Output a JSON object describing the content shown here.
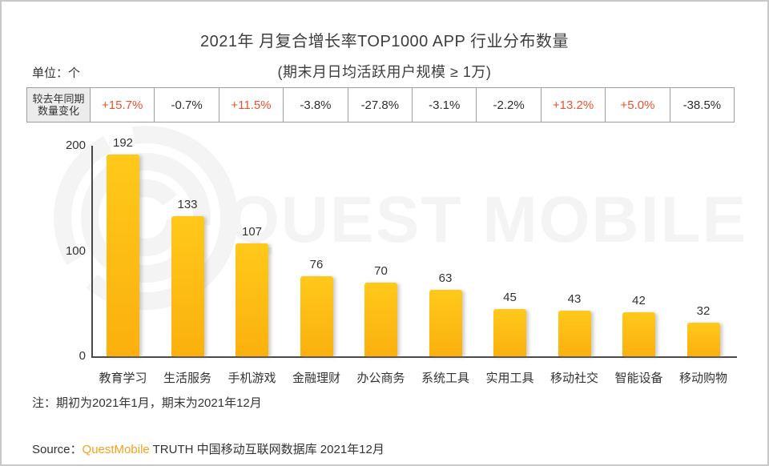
{
  "page": {
    "title": "2021年 月复合增长率TOP1000 APP 行业分布数量",
    "subtitle": "(期末月日均活跃用户规模 ≥ 1万)",
    "unit_label": "单位：个",
    "note": "注：期初为2021年1月，期末为2021年12月",
    "source_prefix": "Source：",
    "source_brand": "QuestMobile",
    "source_suffix": " TRUTH 中国移动互联网数据库 2021年12月",
    "watermark_text": "QUEST MOBILE"
  },
  "comparison_table": {
    "row_header_line1": "较去年同期",
    "row_header_line2": "数量变化",
    "values": [
      "+15.7%",
      "-0.7%",
      "+11.5%",
      "-3.8%",
      "-27.8%",
      "-3.1%",
      "-2.2%",
      "+13.2%",
      "+5.0%",
      "-38.5%"
    ]
  },
  "chart_data": {
    "type": "bar",
    "title": "2021年 月复合增长率TOP1000 APP 行业分布数量",
    "subtitle": "(期末月日均活跃用户规模 ≥ 1万)",
    "unit": "个",
    "categories": [
      "教育学习",
      "生活服务",
      "手机游戏",
      "金融理财",
      "办公商务",
      "系统工具",
      "实用工具",
      "移动社交",
      "智能设备",
      "移动购物"
    ],
    "values": [
      192,
      133,
      107,
      76,
      70,
      63,
      45,
      43,
      42,
      32
    ],
    "yoy_change": [
      "+15.7%",
      "-0.7%",
      "+11.5%",
      "-3.8%",
      "-27.8%",
      "-3.1%",
      "-2.2%",
      "+13.2%",
      "+5.0%",
      "-38.5%"
    ],
    "xlabel": "",
    "ylabel": "单位：个",
    "ylim": [
      0,
      200
    ],
    "yticks": [
      0,
      100,
      200
    ],
    "grid": false,
    "legend": false
  },
  "colors": {
    "bar_top": "#ffc91a",
    "bar_bottom": "#fbb00e",
    "positive_change": "#e8532f",
    "text_dark": "#333333",
    "brand_orange": "#f5a11d",
    "watermark": "#f4f4f4",
    "axis": "#4a4a4a"
  }
}
